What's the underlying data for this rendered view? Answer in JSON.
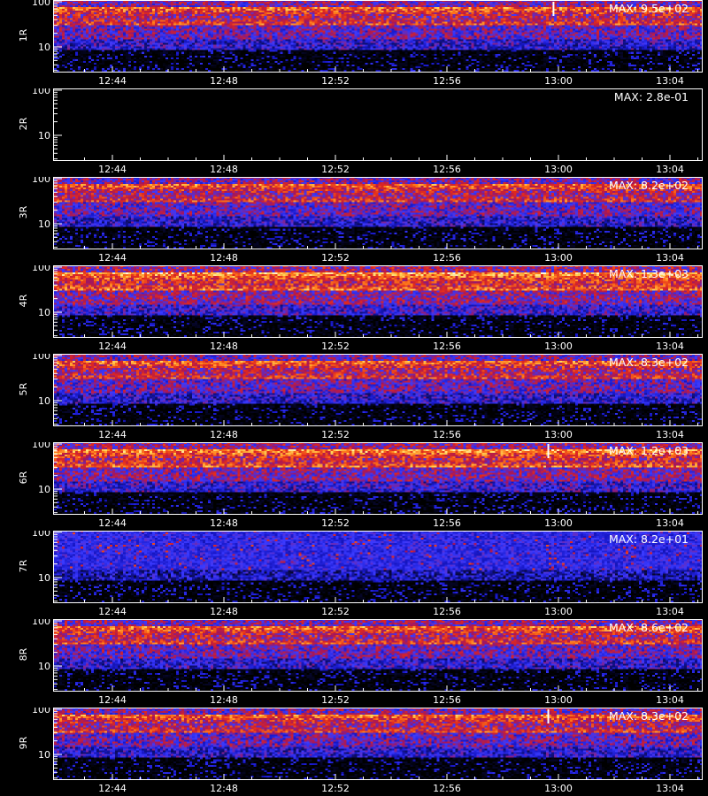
{
  "colors": {
    "background": "#000000",
    "axis": "#ffffff",
    "colormap": [
      "#000000",
      "#0b0b55",
      "#1717c8",
      "#3a3aff",
      "#a01660",
      "#e0281e",
      "#ff7a1a",
      "#ffd45a",
      "#ffffff"
    ]
  },
  "chart_data": {
    "type": "heatmap",
    "x_ticks": [
      "12:44",
      "12:48",
      "12:52",
      "12:56",
      "13:00",
      "13:04"
    ],
    "y_ticks": [
      "100",
      "10"
    ],
    "y_scale": "log",
    "xlabel": "",
    "panels": [
      {
        "label": "1R",
        "max_text": "MAX: 9.5e+02",
        "max_value": 950,
        "activity": 0.75,
        "band_rows": 16,
        "spike_fraction": 0.77
      },
      {
        "label": "2R",
        "max_text": "MAX: 2.8e-01",
        "max_value": 0.28,
        "activity": 0.0,
        "band_rows": 16,
        "spike_fraction": null
      },
      {
        "label": "3R",
        "max_text": "MAX: 8.2e+02",
        "max_value": 820,
        "activity": 0.7,
        "band_rows": 16,
        "spike_fraction": null
      },
      {
        "label": "4R",
        "max_text": "MAX: 1.3e+03",
        "max_value": 1300,
        "activity": 0.95,
        "band_rows": 16,
        "spike_fraction": null
      },
      {
        "label": "5R",
        "max_text": "MAX: 8.3e+02",
        "max_value": 830,
        "activity": 0.72,
        "band_rows": 16,
        "spike_fraction": null
      },
      {
        "label": "6R",
        "max_text": "MAX: 1.2e+03",
        "max_value": 1200,
        "activity": 0.9,
        "band_rows": 16,
        "spike_fraction": 0.762
      },
      {
        "label": "7R",
        "max_text": "MAX: 8.2e+01",
        "max_value": 82,
        "activity": 0.35,
        "band_rows": 0,
        "spike_fraction": null
      },
      {
        "label": "8R",
        "max_text": "MAX: 8.6e+02",
        "max_value": 860,
        "activity": 0.75,
        "band_rows": 16,
        "spike_fraction": null
      },
      {
        "label": "9R",
        "max_text": "MAX: 8.3e+02",
        "max_value": 830,
        "activity": 0.72,
        "band_rows": 16,
        "spike_fraction": 0.762
      }
    ]
  }
}
